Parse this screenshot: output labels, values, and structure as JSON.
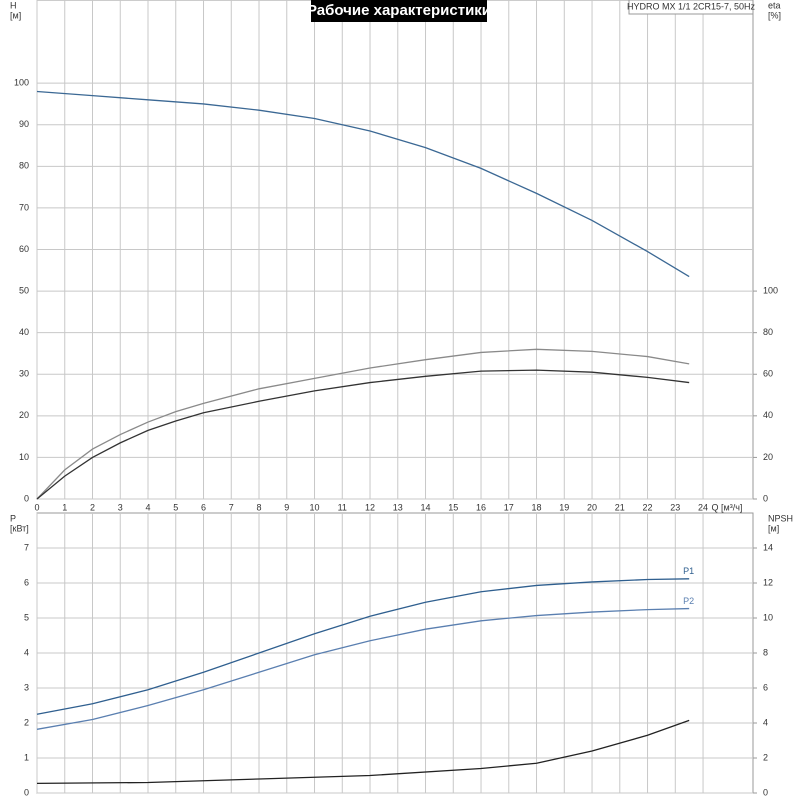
{
  "chart_data": [
    {
      "type": "line",
      "title": "Рабочие характеристики",
      "annotation": "HYDRO MX 1/1 2CR15-7, 50Hz",
      "xlabel": "Q [м³/ч]",
      "ylabel": "H",
      "yunit": "[м]",
      "y2label": "eta",
      "y2unit": "[%]",
      "xlim": [
        0,
        25.8
      ],
      "xticks": [
        0,
        1,
        2,
        3,
        4,
        5,
        6,
        7,
        8,
        9,
        10,
        11,
        12,
        13,
        14,
        15,
        16,
        17,
        18,
        19,
        20,
        21,
        22,
        23,
        24
      ],
      "ylim": [
        0,
        120
      ],
      "yticks": [
        0,
        10,
        20,
        30,
        40,
        50,
        60,
        70,
        80,
        90,
        100
      ],
      "y2lim": [
        0,
        240
      ],
      "y2ticks": [
        0,
        20,
        40,
        60,
        80,
        100
      ],
      "grid": true,
      "show_xtick_labels": true,
      "series": [
        {
          "color": "#3b6894",
          "x": [
            0,
            2,
            4,
            6,
            8,
            10,
            12,
            14,
            16,
            18,
            20,
            22,
            23.5
          ],
          "values": [
            98,
            97,
            96,
            95,
            93.5,
            91.5,
            88.5,
            84.5,
            79.5,
            73.5,
            67,
            59.5,
            53.5
          ]
        },
        {
          "color": "#8a8a8a",
          "axis": "y2",
          "x": [
            0,
            1,
            2,
            3,
            4,
            5,
            6,
            8,
            10,
            12,
            14,
            16,
            18,
            20,
            22,
            23.5
          ],
          "values": [
            0,
            14,
            24,
            31,
            37,
            42,
            46,
            53,
            58,
            63,
            67,
            70.5,
            72,
            71,
            68.5,
            65
          ]
        },
        {
          "color": "#333333",
          "axis": "y2",
          "x": [
            0,
            1,
            2,
            3,
            4,
            5,
            6,
            8,
            10,
            12,
            14,
            16,
            18,
            20,
            22,
            23.5
          ],
          "values": [
            0,
            11,
            20,
            27,
            33,
            37.5,
            41.5,
            47,
            52,
            56,
            59,
            61.5,
            62,
            61,
            58.5,
            56
          ]
        }
      ]
    },
    {
      "type": "line",
      "ylabel": "P",
      "yunit": "[кВт]",
      "y2label": "NPSH",
      "y2unit": "[м]",
      "xlim": [
        0,
        25.8
      ],
      "xticks": [
        0,
        1,
        2,
        3,
        4,
        5,
        6,
        7,
        8,
        9,
        10,
        11,
        12,
        13,
        14,
        15,
        16,
        17,
        18,
        19,
        20,
        21,
        22,
        23,
        24
      ],
      "ylim": [
        0,
        8
      ],
      "yticks": [
        0,
        1,
        2,
        3,
        4,
        5,
        6,
        7
      ],
      "y2lim": [
        0,
        16
      ],
      "y2ticks": [
        0,
        2,
        4,
        6,
        8,
        10,
        12,
        14
      ],
      "grid": true,
      "show_xtick_labels": false,
      "series": [
        {
          "name": "P1",
          "color": "#2f5f8f",
          "x": [
            0,
            2,
            4,
            6,
            8,
            10,
            12,
            14,
            16,
            18,
            20,
            22,
            23.5
          ],
          "values": [
            2.25,
            2.55,
            2.95,
            3.45,
            4.0,
            4.55,
            5.05,
            5.45,
            5.75,
            5.93,
            6.03,
            6.1,
            6.12
          ]
        },
        {
          "name": "P2",
          "color": "#5a7fb0",
          "x": [
            0,
            2,
            4,
            6,
            8,
            10,
            12,
            14,
            16,
            18,
            20,
            22,
            23.5
          ],
          "values": [
            1.82,
            2.1,
            2.5,
            2.95,
            3.45,
            3.95,
            4.35,
            4.68,
            4.92,
            5.07,
            5.17,
            5.24,
            5.27
          ]
        },
        {
          "color": "#222222",
          "axis": "y2",
          "x": [
            0,
            4,
            8,
            12,
            16,
            18,
            20,
            22,
            23.5
          ],
          "values": [
            0.55,
            0.6,
            0.8,
            1.0,
            1.4,
            1.7,
            2.4,
            3.3,
            4.15
          ]
        }
      ]
    }
  ]
}
